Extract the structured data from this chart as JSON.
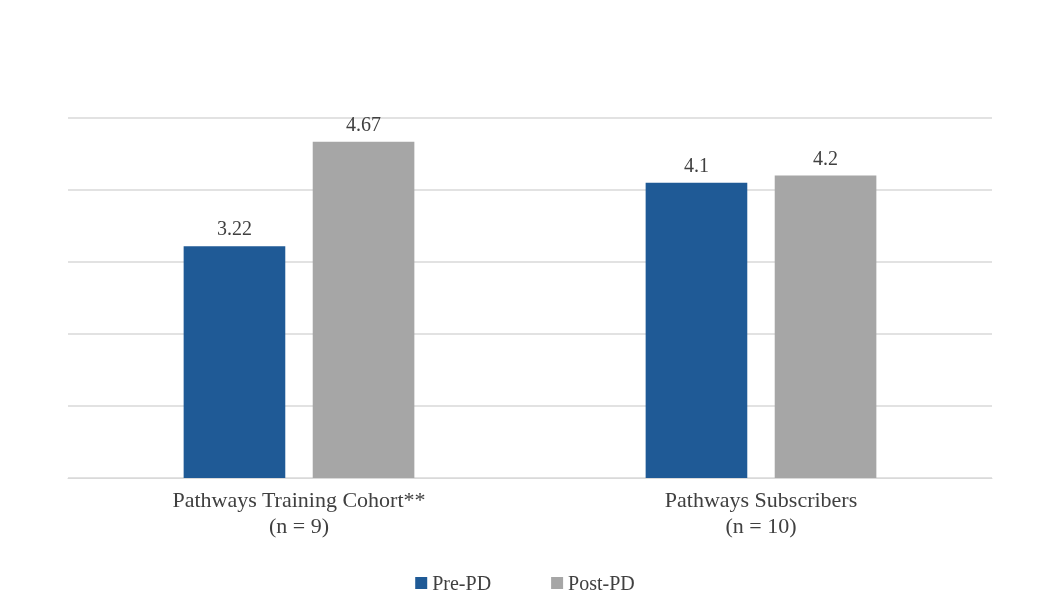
{
  "chart_data": {
    "type": "bar",
    "categories": [
      "Pathways Training Cohort**\n(n = 9)",
      "Pathways Subscribers\n(n = 10)"
    ],
    "series": [
      {
        "name": "Pre-PD",
        "color": "#1f5a96",
        "values": [
          3.22,
          4.1
        ]
      },
      {
        "name": "Post-PD",
        "color": "#a6a6a6",
        "values": [
          4.67,
          4.2
        ]
      }
    ],
    "ylim": [
      0,
      5
    ],
    "yticks": [
      {
        "value": 0,
        "label": null
      },
      {
        "value": 1,
        "label": null
      },
      {
        "value": 2,
        "label": null
      },
      {
        "value": 3,
        "label": null
      },
      {
        "value": 4,
        "label": null
      },
      {
        "value": 5,
        "label": null
      }
    ],
    "grid": "y",
    "legend": "bottom",
    "data_labels": true,
    "tick_labels": "x"
  }
}
